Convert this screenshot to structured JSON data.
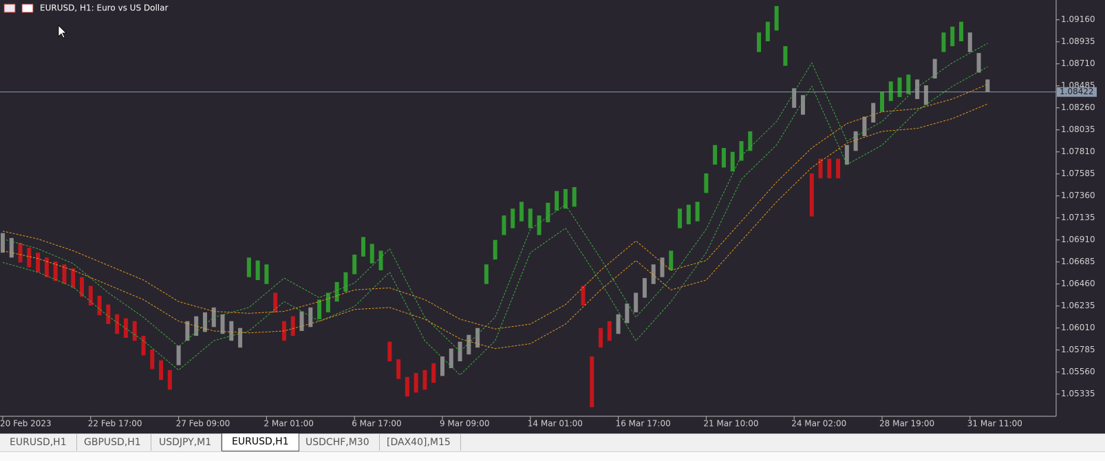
{
  "chart_data": {
    "type": "hlbar",
    "title": "EURUSD, H1:  Euro vs US Dollar",
    "categories": [
      "20 Feb 2023",
      null,
      null,
      null,
      null,
      null,
      null,
      null,
      null,
      null,
      "22 Feb 17:00",
      null,
      null,
      null,
      null,
      null,
      null,
      null,
      null,
      null,
      "27 Feb 09:00",
      null,
      null,
      null,
      null,
      null,
      null,
      null,
      null,
      null,
      "2 Mar 01:00",
      null,
      null,
      null,
      null,
      null,
      null,
      null,
      null,
      null,
      "6 Mar 17:00",
      null,
      null,
      null,
      null,
      null,
      null,
      null,
      null,
      null,
      "9 Mar 09:00",
      null,
      null,
      null,
      null,
      null,
      null,
      null,
      null,
      null,
      "14 Mar 01:00",
      null,
      null,
      null,
      null,
      null,
      null,
      null,
      null,
      null,
      "16 Mar 17:00",
      null,
      null,
      null,
      null,
      null,
      null,
      null,
      null,
      null,
      "21 Mar 10:00",
      null,
      null,
      null,
      null,
      null,
      null,
      null,
      null,
      null,
      "24 Mar 02:00",
      null,
      null,
      null,
      null,
      null,
      null,
      null,
      null,
      null,
      "28 Mar 19:00",
      null,
      null,
      null,
      null,
      null,
      null,
      null,
      null,
      null,
      "31 Mar 11:00",
      null,
      null
    ],
    "high": [
      1.0698,
      1.0693,
      1.0688,
      1.0683,
      1.0678,
      1.0673,
      1.0669,
      1.0666,
      1.0662,
      1.0653,
      1.0644,
      1.0634,
      1.0625,
      1.0615,
      1.0611,
      1.0608,
      1.0593,
      1.0579,
      1.0568,
      1.0558,
      1.0583,
      1.0608,
      1.0613,
      1.0617,
      1.0622,
      1.0615,
      1.0608,
      1.0601,
      1.0673,
      1.067,
      1.0666,
      1.0637,
      1.0608,
      1.0613,
      1.0618,
      1.0622,
      1.063,
      1.0637,
      1.0648,
      1.0658,
      1.0676,
      1.0694,
      1.0687,
      1.068,
      1.0587,
      1.0569,
      1.0551,
      1.0555,
      1.0558,
      1.0565,
      1.0572,
      1.058,
      1.0587,
      1.0594,
      1.0601,
      1.0666,
      1.0691,
      1.0716,
      1.0723,
      1.073,
      1.0723,
      1.0716,
      1.0729,
      1.0741,
      1.0743,
      1.0745,
      1.0644,
      1.0572,
      1.0601,
      1.0608,
      1.0615,
      1.0626,
      1.0637,
      1.0652,
      1.0666,
      1.0673,
      1.068,
      1.0723,
      1.0727,
      1.073,
      1.0759,
      1.0788,
      1.0785,
      1.0781,
      1.0792,
      1.0802,
      1.0903,
      1.0914,
      1.093,
      1.0889,
      1.0846,
      1.0839,
      1.0759,
      1.0774,
      1.0774,
      1.0774,
      1.0788,
      1.0802,
      1.0817,
      1.0831,
      1.0842,
      1.0853,
      1.0857,
      1.086,
      1.0855,
      1.0849,
      1.0876,
      1.0903,
      1.0909,
      1.0914,
      1.0903,
      1.0882,
      1.0855
    ],
    "low": [
      1.0678,
      1.0673,
      1.0668,
      1.0663,
      1.0658,
      1.0653,
      1.0649,
      1.0646,
      1.0642,
      1.0633,
      1.0624,
      1.0614,
      1.0605,
      1.0595,
      1.0591,
      1.0588,
      1.0573,
      1.0559,
      1.0548,
      1.0538,
      1.0563,
      1.0588,
      1.0593,
      1.0597,
      1.0602,
      1.0595,
      1.0588,
      1.0581,
      1.0653,
      1.065,
      1.0646,
      1.0617,
      1.0588,
      1.0593,
      1.0598,
      1.0602,
      1.061,
      1.0617,
      1.0628,
      1.0638,
      1.0656,
      1.0674,
      1.0667,
      1.066,
      1.0567,
      1.0549,
      1.0531,
      1.0535,
      1.0538,
      1.0545,
      1.0552,
      1.056,
      1.0567,
      1.0574,
      1.0581,
      1.0646,
      1.0671,
      1.0696,
      1.0703,
      1.071,
      1.0703,
      1.0696,
      1.0709,
      1.0721,
      1.0723,
      1.0725,
      1.0624,
      1.052,
      1.0581,
      1.0588,
      1.0595,
      1.0606,
      1.0617,
      1.0632,
      1.0646,
      1.0653,
      1.066,
      1.0703,
      1.0707,
      1.071,
      1.0739,
      1.0768,
      1.0765,
      1.0761,
      1.0772,
      1.0782,
      1.0883,
      1.0894,
      1.0905,
      1.0869,
      1.0826,
      1.0819,
      1.0715,
      1.0754,
      1.0754,
      1.0754,
      1.0768,
      1.0782,
      1.0797,
      1.0811,
      1.0822,
      1.0833,
      1.0837,
      1.084,
      1.0835,
      1.0829,
      1.0856,
      1.0883,
      1.0889,
      1.0894,
      1.0883,
      1.0862,
      1.0842
    ],
    "bar_colors": [
      "n",
      "n",
      "r",
      "r",
      "r",
      "r",
      "r",
      "r",
      "r",
      "r",
      "r",
      "r",
      "r",
      "r",
      "r",
      "r",
      "r",
      "r",
      "r",
      "r",
      "n",
      "n",
      "n",
      "n",
      "n",
      "n",
      "n",
      "n",
      "g",
      "g",
      "g",
      "r",
      "r",
      "r",
      "n",
      "n",
      "g",
      "g",
      "g",
      "g",
      "g",
      "g",
      "g",
      "g",
      "r",
      "r",
      "r",
      "r",
      "r",
      "r",
      "n",
      "n",
      "n",
      "n",
      "n",
      "g",
      "g",
      "g",
      "g",
      "g",
      "g",
      "g",
      "g",
      "g",
      "g",
      "g",
      "r",
      "r",
      "r",
      "r",
      "n",
      "n",
      "n",
      "n",
      "n",
      "n",
      "g",
      "g",
      "g",
      "g",
      "g",
      "g",
      "g",
      "g",
      "g",
      "g",
      "g",
      "g",
      "g",
      "g",
      "n",
      "n",
      "r",
      "r",
      "r",
      "r",
      "n",
      "n",
      "n",
      "n",
      "g",
      "g",
      "g",
      "g",
      "n",
      "n",
      "n",
      "g",
      "g",
      "g",
      "n",
      "n",
      "n"
    ],
    "palette": {
      "g": "#2f9a2f",
      "r": "#c4161c",
      "n": "#8a8a8a"
    },
    "bands": [
      {
        "color": "#3fae3f",
        "x": [
          0,
          4,
          8,
          12,
          16,
          20,
          24,
          28,
          32,
          36,
          40,
          44,
          48,
          52,
          56,
          60,
          64,
          68,
          72,
          76,
          80,
          84,
          88,
          92,
          96,
          100,
          104,
          108,
          112
        ],
        "upper": [
          1.0692,
          1.0682,
          1.0667,
          1.0637,
          1.0612,
          1.0582,
          1.0612,
          1.0622,
          1.0652,
          1.0632,
          1.0647,
          1.0682,
          1.0612,
          1.0577,
          1.0612,
          1.0702,
          1.0727,
          1.0672,
          1.0612,
          1.0652,
          1.0702,
          1.0777,
          1.0812,
          1.0872,
          1.0792,
          1.0812,
          1.0847,
          1.0872,
          1.0892
        ],
        "lower": [
          1.0668,
          1.0658,
          1.0643,
          1.0613,
          1.0588,
          1.0558,
          1.0588,
          1.0598,
          1.0628,
          1.0608,
          1.0623,
          1.0658,
          1.0588,
          1.0553,
          1.0588,
          1.0678,
          1.0703,
          1.0648,
          1.0588,
          1.0628,
          1.0678,
          1.0753,
          1.0788,
          1.0848,
          1.0768,
          1.0788,
          1.0823,
          1.0848,
          1.0868
        ]
      },
      {
        "color": "#e89a1c",
        "x": [
          0,
          4,
          8,
          12,
          16,
          20,
          24,
          28,
          32,
          36,
          40,
          44,
          48,
          52,
          56,
          60,
          64,
          68,
          72,
          76,
          80,
          84,
          88,
          92,
          96,
          100,
          104,
          108,
          112
        ],
        "upper": [
          1.07,
          1.0692,
          1.068,
          1.0665,
          1.065,
          1.0628,
          1.0618,
          1.0616,
          1.0618,
          1.0628,
          1.064,
          1.0642,
          1.063,
          1.061,
          1.06,
          1.0605,
          1.0625,
          1.066,
          1.069,
          1.066,
          1.067,
          1.071,
          1.075,
          1.0785,
          1.081,
          1.0822,
          1.0825,
          1.0835,
          1.085
        ],
        "lower": [
          1.068,
          1.0672,
          1.066,
          1.0645,
          1.063,
          1.0608,
          1.0598,
          1.0596,
          1.0598,
          1.0608,
          1.062,
          1.0622,
          1.061,
          1.059,
          1.058,
          1.0585,
          1.0605,
          1.064,
          1.067,
          1.064,
          1.065,
          1.069,
          1.073,
          1.0765,
          1.079,
          1.0802,
          1.0805,
          1.0815,
          1.083
        ]
      }
    ],
    "current_price": {
      "value": 1.08422,
      "label": "1.08422"
    },
    "ylim": [
      1.05108,
      1.09362
    ],
    "yticks": [
      {
        "value": 1.05335,
        "label": "1.05335"
      },
      {
        "value": 1.0556,
        "label": "1.05560"
      },
      {
        "value": 1.05785,
        "label": "1.05785"
      },
      {
        "value": 1.0601,
        "label": "1.06010"
      },
      {
        "value": 1.06235,
        "label": "1.06235"
      },
      {
        "value": 1.0646,
        "label": "1.06460"
      },
      {
        "value": 1.06685,
        "label": "1.06685"
      },
      {
        "value": 1.0691,
        "label": "1.06910"
      },
      {
        "value": 1.07135,
        "label": "1.07135"
      },
      {
        "value": 1.0736,
        "label": "1.07360"
      },
      {
        "value": 1.07585,
        "label": "1.07585"
      },
      {
        "value": 1.0781,
        "label": "1.07810"
      },
      {
        "value": 1.08035,
        "label": "1.08035"
      },
      {
        "value": 1.0826,
        "label": "1.08260"
      },
      {
        "value": 1.08485,
        "label": "1.08485"
      },
      {
        "value": 1.0871,
        "label": "1.08710"
      },
      {
        "value": 1.08935,
        "label": "1.08935"
      },
      {
        "value": 1.0916,
        "label": "1.09160"
      }
    ]
  },
  "tabs": [
    "EURUSD,H1",
    "GBPUSD,H1",
    "USDJPY,M1",
    "EURUSD,H1",
    "USDCHF,M30",
    "[DAX40],M15"
  ],
  "active_tab": 3
}
